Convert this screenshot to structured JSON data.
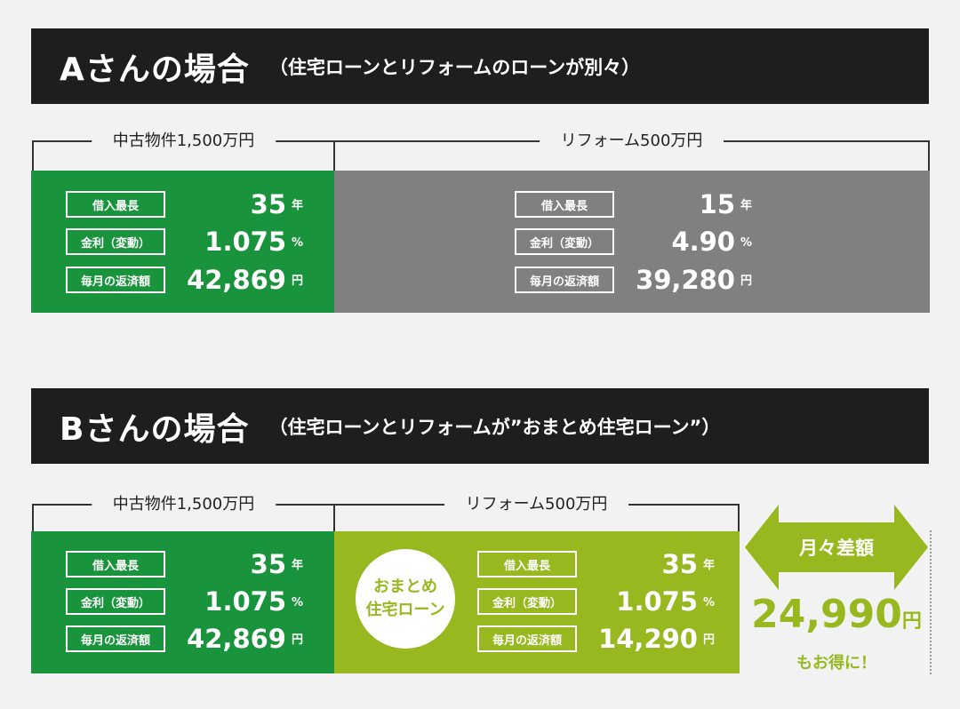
{
  "case_a": {
    "title": "Aさんの場合",
    "subtitle": "（住宅ローンとリフォームのローンが別々）",
    "property_label": "中古物件1,500万円",
    "reform_label": "リフォーム500万円",
    "property_loan": {
      "term_label": "借入最長",
      "term_value": "35",
      "term_unit": "年",
      "rate_label": "金利（変動）",
      "rate_value": "1.075",
      "rate_unit": "%",
      "payment_label": "毎月の返済額",
      "payment_value": "42,869",
      "payment_unit": "円"
    },
    "reform_loan": {
      "term_label": "借入最長",
      "term_value": "15",
      "term_unit": "年",
      "rate_label": "金利（変動）",
      "rate_value": "4.90",
      "rate_unit": "%",
      "payment_label": "毎月の返済額",
      "payment_value": "39,280",
      "payment_unit": "円"
    }
  },
  "case_b": {
    "title": "Bさんの場合",
    "subtitle": "（住宅ローンとリフォームが”おまとめ住宅ローン”）",
    "property_label": "中古物件1,500万円",
    "reform_label": "リフォーム500万円",
    "property_loan": {
      "term_label": "借入最長",
      "term_value": "35",
      "term_unit": "年",
      "rate_label": "金利（変動）",
      "rate_value": "1.075",
      "rate_unit": "%",
      "payment_label": "毎月の返済額",
      "payment_value": "42,869",
      "payment_unit": "円"
    },
    "badge_line1": "おまとめ",
    "badge_line2": "住宅ローン",
    "reform_loan": {
      "term_label": "借入最長",
      "term_value": "35",
      "term_unit": "年",
      "rate_label": "金利（変動）",
      "rate_value": "1.075",
      "rate_unit": "%",
      "payment_label": "毎月の返済額",
      "payment_value": "14,290",
      "payment_unit": "円"
    }
  },
  "difference": {
    "label": "月々差額",
    "value": "24,990",
    "unit": "円",
    "note": "もお得に！"
  },
  "colors": {
    "banner": "#1e1e1e",
    "green": "#1a943c",
    "gray": "#808080",
    "lime": "#97b81f"
  }
}
